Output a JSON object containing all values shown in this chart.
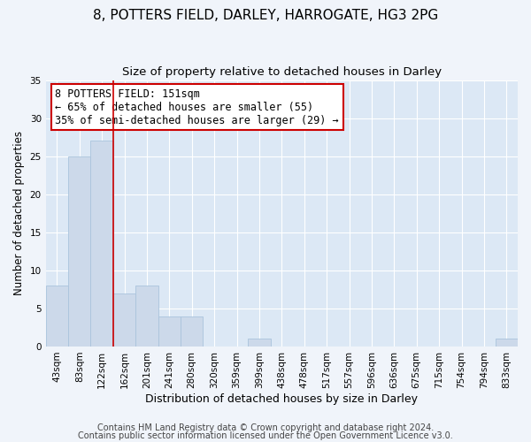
{
  "title": "8, POTTERS FIELD, DARLEY, HARROGATE, HG3 2PG",
  "subtitle": "Size of property relative to detached houses in Darley",
  "xlabel": "Distribution of detached houses by size in Darley",
  "ylabel": "Number of detached properties",
  "bar_color": "#ccd9ea",
  "bar_edgecolor": "#aac4dc",
  "background_color": "#dce8f5",
  "grid_color": "#ffffff",
  "fig_background": "#f0f4fa",
  "categories": [
    "43sqm",
    "83sqm",
    "122sqm",
    "162sqm",
    "201sqm",
    "241sqm",
    "280sqm",
    "320sqm",
    "359sqm",
    "399sqm",
    "438sqm",
    "478sqm",
    "517sqm",
    "557sqm",
    "596sqm",
    "636sqm",
    "675sqm",
    "715sqm",
    "754sqm",
    "794sqm",
    "833sqm"
  ],
  "values": [
    8,
    25,
    27,
    7,
    8,
    4,
    4,
    0,
    0,
    1,
    0,
    0,
    0,
    0,
    0,
    0,
    0,
    0,
    0,
    0,
    1
  ],
  "ylim": [
    0,
    35
  ],
  "yticks": [
    0,
    5,
    10,
    15,
    20,
    25,
    30,
    35
  ],
  "vline_color": "#cc0000",
  "annotation_text": "8 POTTERS FIELD: 151sqm\n← 65% of detached houses are smaller (55)\n35% of semi-detached houses are larger (29) →",
  "annotation_box_edgecolor": "#cc0000",
  "footer1": "Contains HM Land Registry data © Crown copyright and database right 2024.",
  "footer2": "Contains public sector information licensed under the Open Government Licence v3.0.",
  "title_fontsize": 11,
  "subtitle_fontsize": 9.5,
  "xlabel_fontsize": 9,
  "ylabel_fontsize": 8.5,
  "tick_fontsize": 7.5,
  "annotation_fontsize": 8.5,
  "footer_fontsize": 7
}
